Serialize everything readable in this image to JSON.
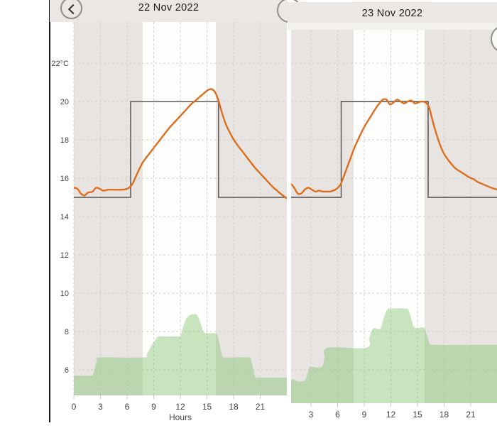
{
  "app": {
    "kind": "thermostat-daily-history-carousel"
  },
  "colors": {
    "header_bg": "#eae7e4",
    "plot_bg": "#e7e4e1",
    "comfort_band_bg": "#fdfdfc",
    "gridline": "#d2cfca",
    "temperature_line": "#dc6e1d",
    "setpoint_line": "#4f4c49",
    "green_area_fill": "rgba(134,197,116,0.45)",
    "axis_text": "#45423f",
    "tick_mark": "#c8c5c1"
  },
  "panels": [
    {
      "title": "22 Nov 2022",
      "x_axis": {
        "label": "Hours",
        "tick_hours": [
          0,
          3,
          6,
          9,
          12,
          15,
          18,
          21
        ],
        "tick_labels": [
          "0",
          "3",
          "6",
          "9",
          "12",
          "15",
          "18",
          "21"
        ]
      },
      "y_axis": {
        "tick_values": [
          22,
          20,
          18,
          16,
          14,
          12,
          10,
          8,
          6
        ],
        "tick_labels": [
          "22°C",
          "20",
          "18",
          "16",
          "14",
          "12",
          "10",
          "8",
          "6"
        ]
      }
    },
    {
      "title": "23 Nov 2022",
      "x_axis": {
        "label": "",
        "tick_hours": [
          3,
          6,
          9,
          12,
          15,
          18,
          21
        ],
        "tick_labels": [
          "3",
          "6",
          "9",
          "12",
          "15",
          "18",
          "21"
        ]
      },
      "y_axis": {
        "tick_values": [],
        "tick_labels": []
      }
    }
  ],
  "chart_data": [
    {
      "type": "line",
      "title": "22 Nov 2022",
      "xlabel": "Hours",
      "x_range": [
        0,
        24
      ],
      "x_range_visible": [
        0,
        24
      ],
      "y_range_visible": [
        4.67,
        24.15
      ],
      "comfort_band_hours": [
        7.75,
        16.0
      ],
      "series": [
        {
          "name": "setpoint-schedule",
          "style": "step",
          "steps": [
            {
              "from_hour": 0,
              "to_hour": 6.4,
              "value": 15
            },
            {
              "from_hour": 6.4,
              "to_hour": 16.3,
              "value": 20
            },
            {
              "from_hour": 16.3,
              "to_hour": 24,
              "value": 15
            }
          ]
        },
        {
          "name": "measured-temperature",
          "style": "line",
          "points": [
            [
              0,
              15.5
            ],
            [
              0.4,
              15.45
            ],
            [
              0.8,
              15.2
            ],
            [
              1.2,
              15.1
            ],
            [
              1.6,
              15.25
            ],
            [
              2.1,
              15.3
            ],
            [
              2.5,
              15.5
            ],
            [
              2.9,
              15.45
            ],
            [
              3.3,
              15.35
            ],
            [
              3.8,
              15.4
            ],
            [
              4.3,
              15.4
            ],
            [
              4.8,
              15.4
            ],
            [
              5.3,
              15.4
            ],
            [
              5.8,
              15.42
            ],
            [
              6.2,
              15.5
            ],
            [
              6.6,
              15.7
            ],
            [
              7,
              16.1
            ],
            [
              7.4,
              16.5
            ],
            [
              7.8,
              16.85
            ],
            [
              8.2,
              17.1
            ],
            [
              8.7,
              17.4
            ],
            [
              9.2,
              17.7
            ],
            [
              9.7,
              18
            ],
            [
              10.2,
              18.3
            ],
            [
              10.7,
              18.6
            ],
            [
              11.2,
              18.85
            ],
            [
              11.7,
              19.1
            ],
            [
              12.2,
              19.35
            ],
            [
              12.7,
              19.6
            ],
            [
              13.2,
              19.85
            ],
            [
              13.7,
              20.05
            ],
            [
              14.2,
              20.25
            ],
            [
              14.7,
              20.45
            ],
            [
              15.1,
              20.6
            ],
            [
              15.5,
              20.65
            ],
            [
              15.9,
              20.5
            ],
            [
              16.3,
              20.05
            ],
            [
              16.7,
              19.4
            ],
            [
              17.1,
              18.85
            ],
            [
              17.5,
              18.45
            ],
            [
              17.9,
              18.1
            ],
            [
              18.4,
              17.75
            ],
            [
              18.9,
              17.45
            ],
            [
              19.4,
              17.15
            ],
            [
              19.9,
              16.85
            ],
            [
              20.4,
              16.55
            ],
            [
              20.9,
              16.3
            ],
            [
              21.4,
              16.05
            ],
            [
              21.9,
              15.8
            ],
            [
              22.4,
              15.55
            ],
            [
              22.9,
              15.35
            ],
            [
              23.4,
              15.15
            ],
            [
              24,
              14.95
            ]
          ]
        },
        {
          "name": "green-activity-area",
          "style": "area",
          "points": [
            [
              0,
              5.7
            ],
            [
              1.9,
              5.7
            ],
            [
              2.2,
              5.8
            ],
            [
              2.6,
              6.5
            ],
            [
              2.9,
              6.65
            ],
            [
              7.8,
              6.65
            ],
            [
              8.2,
              6.8
            ],
            [
              8.8,
              7.3
            ],
            [
              9.4,
              7.7
            ],
            [
              9.8,
              7.75
            ],
            [
              11.8,
              7.75
            ],
            [
              12.1,
              7.9
            ],
            [
              12.5,
              8.5
            ],
            [
              12.9,
              8.8
            ],
            [
              13.4,
              8.9
            ],
            [
              13.9,
              8.85
            ],
            [
              14.3,
              8.4
            ],
            [
              14.6,
              8.0
            ],
            [
              15,
              7.9
            ],
            [
              16,
              7.9
            ],
            [
              16.3,
              7.6
            ],
            [
              16.7,
              6.75
            ],
            [
              17,
              6.65
            ],
            [
              19.7,
              6.65
            ],
            [
              20,
              6.45
            ],
            [
              20.4,
              5.7
            ],
            [
              20.8,
              5.6
            ],
            [
              24,
              5.6
            ]
          ]
        }
      ]
    },
    {
      "type": "line",
      "title": "23 Nov 2022",
      "xlabel": "",
      "x_range": [
        0,
        24
      ],
      "x_range_visible": [
        0.76,
        23.96
      ],
      "y_range_visible": [
        4.26,
        23.74
      ],
      "comfort_band_hours": [
        7.8,
        15.8
      ],
      "series": [
        {
          "name": "setpoint-schedule",
          "style": "step",
          "steps": [
            {
              "from_hour": 0,
              "to_hour": 6.4,
              "value": 15
            },
            {
              "from_hour": 6.4,
              "to_hour": 16.2,
              "value": 20
            },
            {
              "from_hour": 16.2,
              "to_hour": 24,
              "value": 15
            }
          ]
        },
        {
          "name": "measured-temperature",
          "style": "line",
          "points": [
            [
              0,
              15.45
            ],
            [
              0.3,
              15.5
            ],
            [
              0.7,
              15.7
            ],
            [
              1.1,
              15.5
            ],
            [
              1.5,
              15.2
            ],
            [
              1.9,
              15.2
            ],
            [
              2.3,
              15.4
            ],
            [
              2.7,
              15.5
            ],
            [
              3.1,
              15.4
            ],
            [
              3.5,
              15.3
            ],
            [
              3.9,
              15.35
            ],
            [
              4.3,
              15.3
            ],
            [
              4.7,
              15.3
            ],
            [
              5.1,
              15.3
            ],
            [
              5.5,
              15.35
            ],
            [
              5.9,
              15.45
            ],
            [
              6.3,
              15.65
            ],
            [
              6.7,
              16.1
            ],
            [
              7.1,
              16.6
            ],
            [
              7.5,
              17.1
            ],
            [
              7.9,
              17.6
            ],
            [
              8.3,
              18
            ],
            [
              8.7,
              18.4
            ],
            [
              9.1,
              18.75
            ],
            [
              9.5,
              19.05
            ],
            [
              9.9,
              19.35
            ],
            [
              10.3,
              19.65
            ],
            [
              10.7,
              19.9
            ],
            [
              11.1,
              20.1
            ],
            [
              11.5,
              20.1
            ],
            [
              11.9,
              19.85
            ],
            [
              12.3,
              19.95
            ],
            [
              12.7,
              20.1
            ],
            [
              13.1,
              20
            ],
            [
              13.5,
              19.9
            ],
            [
              13.9,
              20
            ],
            [
              14.3,
              20.05
            ],
            [
              14.7,
              19.9
            ],
            [
              15.1,
              19.95
            ],
            [
              15.5,
              20
            ],
            [
              15.9,
              19.95
            ],
            [
              16.3,
              19.7
            ],
            [
              16.7,
              19
            ],
            [
              17.1,
              18.35
            ],
            [
              17.5,
              17.8
            ],
            [
              17.9,
              17.35
            ],
            [
              18.3,
              17.05
            ],
            [
              18.8,
              16.75
            ],
            [
              19.3,
              16.5
            ],
            [
              19.8,
              16.35
            ],
            [
              20.3,
              16.2
            ],
            [
              20.8,
              16.05
            ],
            [
              21.3,
              15.95
            ],
            [
              21.8,
              15.8
            ],
            [
              22.3,
              15.7
            ],
            [
              22.8,
              15.6
            ],
            [
              23.3,
              15.5
            ],
            [
              24,
              15.4
            ]
          ]
        },
        {
          "name": "green-activity-area",
          "style": "area",
          "points": [
            [
              0,
              5.5
            ],
            [
              1,
              5.5
            ],
            [
              1.5,
              5.4
            ],
            [
              2,
              5.4
            ],
            [
              2.4,
              5.5
            ],
            [
              2.8,
              6.1
            ],
            [
              3.1,
              6.15
            ],
            [
              4.2,
              6.15
            ],
            [
              4.5,
              6.6
            ],
            [
              4.9,
              7.15
            ],
            [
              9.2,
              7.15
            ],
            [
              9.6,
              7.7
            ],
            [
              10,
              8.15
            ],
            [
              10.8,
              8.15
            ],
            [
              11.2,
              8.7
            ],
            [
              11.6,
              9.15
            ],
            [
              12,
              9.2
            ],
            [
              13.6,
              9.2
            ],
            [
              14,
              9.1
            ],
            [
              14.4,
              8.5
            ],
            [
              14.7,
              8.2
            ],
            [
              15.7,
              8.2
            ],
            [
              16,
              7.9
            ],
            [
              16.4,
              7.35
            ],
            [
              16.8,
              7.3
            ],
            [
              24,
              7.3
            ]
          ]
        }
      ]
    }
  ]
}
